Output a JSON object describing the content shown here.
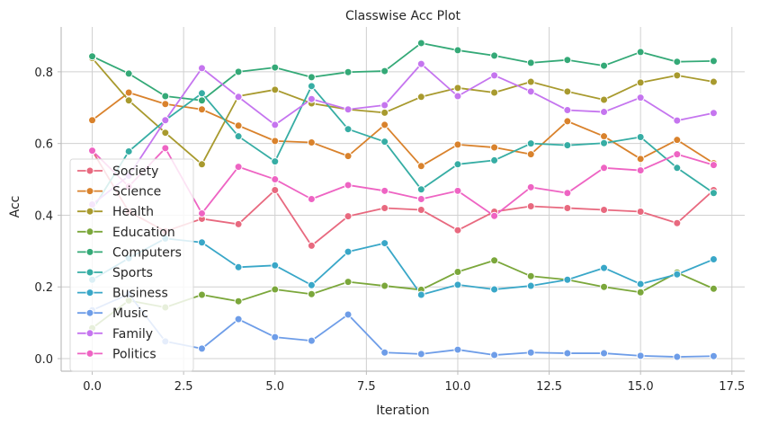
{
  "chart_data": {
    "type": "line",
    "title": "Classwise Acc Plot",
    "xlabel": "Iteration",
    "ylabel": "Acc",
    "xlim": [
      -0.85,
      17.85
    ],
    "ylim": [
      -0.035,
      0.925
    ],
    "xticks": [
      0.0,
      2.5,
      5.0,
      7.5,
      10.0,
      12.5,
      15.0,
      17.5
    ],
    "xtick_labels": [
      "0.0",
      "2.5",
      "5.0",
      "7.5",
      "10.0",
      "12.5",
      "15.0",
      "17.5"
    ],
    "yticks": [
      0.0,
      0.2,
      0.4,
      0.6,
      0.8
    ],
    "ytick_labels": [
      "0.0",
      "0.2",
      "0.4",
      "0.6",
      "0.8"
    ],
    "grid": true,
    "legend_position": "lower-left",
    "x": [
      0,
      1,
      2,
      3,
      4,
      5,
      6,
      7,
      8,
      9,
      10,
      11,
      12,
      13,
      14,
      15,
      16,
      17
    ],
    "series": [
      {
        "name": "Society",
        "color": "#e8697f",
        "values": [
          0.58,
          0.41,
          0.355,
          0.39,
          0.375,
          0.47,
          0.315,
          0.397,
          0.42,
          0.415,
          0.358,
          0.41,
          0.425,
          0.42,
          0.415,
          0.41,
          0.378,
          0.47
        ]
      },
      {
        "name": "Science",
        "color": "#d9822c",
        "values": [
          0.665,
          0.742,
          0.71,
          0.695,
          0.65,
          0.607,
          0.603,
          0.565,
          0.652,
          0.537,
          0.597,
          0.589,
          0.57,
          0.662,
          0.62,
          0.557,
          0.61,
          0.545
        ]
      },
      {
        "name": "Health",
        "color": "#a89a2e",
        "values": [
          0.838,
          0.72,
          0.63,
          0.542,
          0.732,
          0.75,
          0.712,
          0.695,
          0.686,
          0.73,
          0.755,
          0.742,
          0.772,
          0.745,
          0.722,
          0.77,
          0.79,
          0.772
        ]
      },
      {
        "name": "Education",
        "color": "#7ba73b",
        "values": [
          0.085,
          0.162,
          0.143,
          0.178,
          0.16,
          0.193,
          0.18,
          0.214,
          0.203,
          0.192,
          0.242,
          0.274,
          0.23,
          0.22,
          0.2,
          0.185,
          0.24,
          0.195
        ]
      },
      {
        "name": "Computers",
        "color": "#34a977",
        "values": [
          0.843,
          0.795,
          0.732,
          0.72,
          0.8,
          0.812,
          0.785,
          0.799,
          0.802,
          0.88,
          0.86,
          0.845,
          0.825,
          0.833,
          0.817,
          0.855,
          0.828,
          0.83
        ]
      },
      {
        "name": "Sports",
        "color": "#36ada4",
        "values": [
          0.415,
          0.578,
          0.665,
          0.74,
          0.62,
          0.55,
          0.76,
          0.64,
          0.605,
          0.472,
          0.542,
          0.553,
          0.6,
          0.595,
          0.601,
          0.618,
          0.532,
          0.462
        ]
      },
      {
        "name": "Business",
        "color": "#39a7c8",
        "values": [
          0.22,
          0.28,
          0.335,
          0.324,
          0.255,
          0.26,
          0.205,
          0.298,
          0.322,
          0.178,
          0.206,
          0.193,
          0.203,
          0.22,
          0.253,
          0.208,
          0.235,
          0.277
        ]
      },
      {
        "name": "Music",
        "color": "#6e9de8",
        "values": [
          0.135,
          0.18,
          0.048,
          0.028,
          0.11,
          0.06,
          0.05,
          0.123,
          0.017,
          0.013,
          0.025,
          0.01,
          0.017,
          0.015,
          0.015,
          0.008,
          0.005,
          0.007
        ]
      },
      {
        "name": "Family",
        "color": "#c575ef",
        "values": [
          0.43,
          0.51,
          0.665,
          0.81,
          0.73,
          0.652,
          0.724,
          0.695,
          0.707,
          0.822,
          0.732,
          0.79,
          0.745,
          0.693,
          0.688,
          0.728,
          0.664,
          0.685
        ]
      },
      {
        "name": "Politics",
        "color": "#ee64c3",
        "values": [
          0.58,
          0.48,
          0.587,
          0.405,
          0.535,
          0.5,
          0.445,
          0.484,
          0.468,
          0.445,
          0.468,
          0.398,
          0.478,
          0.462,
          0.532,
          0.525,
          0.57,
          0.54
        ]
      }
    ]
  }
}
